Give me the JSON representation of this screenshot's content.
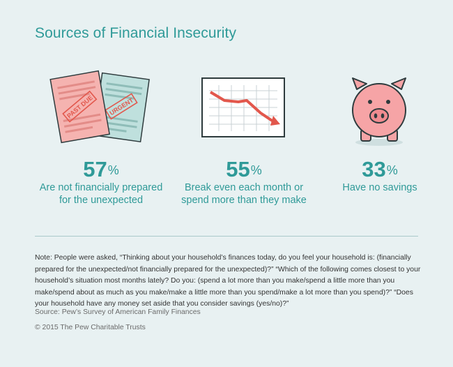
{
  "title": "Sources of Financial Insecurity",
  "stats": [
    {
      "value": "57",
      "unit": "%",
      "line1": "Are not financially prepared",
      "line2": "for the unexpected",
      "icon": "overdue-bills-icon",
      "stamp1": "PAST DUE",
      "stamp2": "URGENT"
    },
    {
      "value": "55",
      "unit": "%",
      "line1": "Break even each month or",
      "line2": "spend more than they make",
      "icon": "declining-chart-icon"
    },
    {
      "value": "33",
      "unit": "%",
      "line1": "Have no savings",
      "line2": "",
      "icon": "piggy-bank-icon"
    }
  ],
  "note": "Note: People were asked, “Thinking about your household’s finances today, do you feel your household is: (financially prepared for the unexpected/not financially prepared for the unexpected)?” “Which of the following comes closest to your household’s situation most months lately? Do you: (spend a lot more than you make/spend a little more than you make/spend about as much as you make/make a little more than you spend/make a lot more than you spend)?” “Does your household have any money set aside that you consider savings (yes/no)?”",
  "source": "Source: Pew’s Survey of American Family Finances",
  "copyright": "© 2015 The Pew Charitable Trusts",
  "colors": {
    "accent": "#2f9a98",
    "background": "#e8f1f2",
    "bill_pink": "#f5b3b0",
    "bill_teal": "#bfe0dd",
    "arrow_red": "#e2574c",
    "pig_pink": "#f6a4a6"
  }
}
